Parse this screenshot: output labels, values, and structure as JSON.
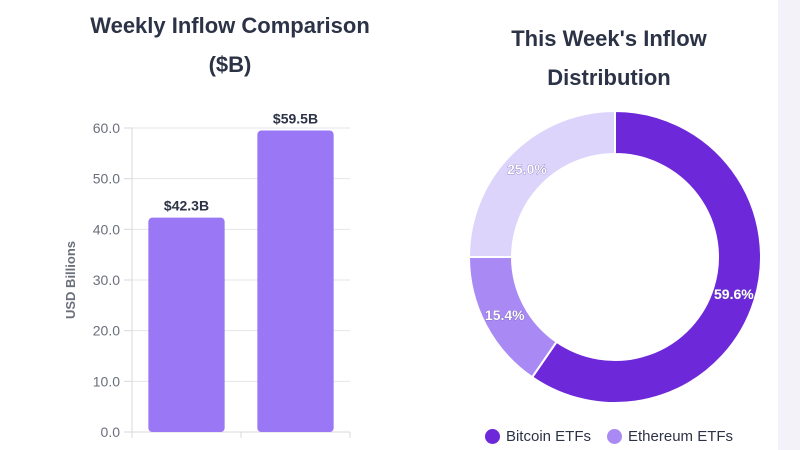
{
  "chart_data": [
    {
      "type": "bar",
      "title": "Weekly Inflow Comparison ($B)",
      "title_lines": [
        "Weekly Inflow Comparison",
        "($B)"
      ],
      "categories": [
        "",
        ""
      ],
      "values": [
        42.3,
        59.5
      ],
      "data_labels": [
        "$42.3B",
        "$59.5B"
      ],
      "xlabel": "",
      "ylabel": "USD Billions",
      "ylim": [
        0,
        60
      ],
      "yticks": [
        0.0,
        10.0,
        20.0,
        30.0,
        40.0,
        50.0,
        60.0
      ],
      "ytick_labels": [
        "0.0",
        "10.0",
        "20.0",
        "30.0",
        "40.0",
        "50.0",
        "60.0"
      ],
      "grid": true,
      "bar_color": "#9a77f5"
    },
    {
      "type": "pie",
      "title": "This Week's Inflow Distribution",
      "title_lines": [
        "This Week's Inflow",
        "Distribution"
      ],
      "slices": [
        {
          "value": 59.6,
          "label": "59.6%",
          "color": "#6d28d9"
        },
        {
          "value": 15.4,
          "label": "15.4%",
          "color": "#a98af5"
        },
        {
          "value": 25.0,
          "label": "25.0%",
          "color": "#dcd4fb"
        }
      ],
      "legend": [
        {
          "name": "Bitcoin ETFs",
          "color": "#6d28d9"
        },
        {
          "name": "Ethereum ETFs",
          "color": "#a98af5"
        }
      ],
      "legend_position": "bottom"
    }
  ]
}
